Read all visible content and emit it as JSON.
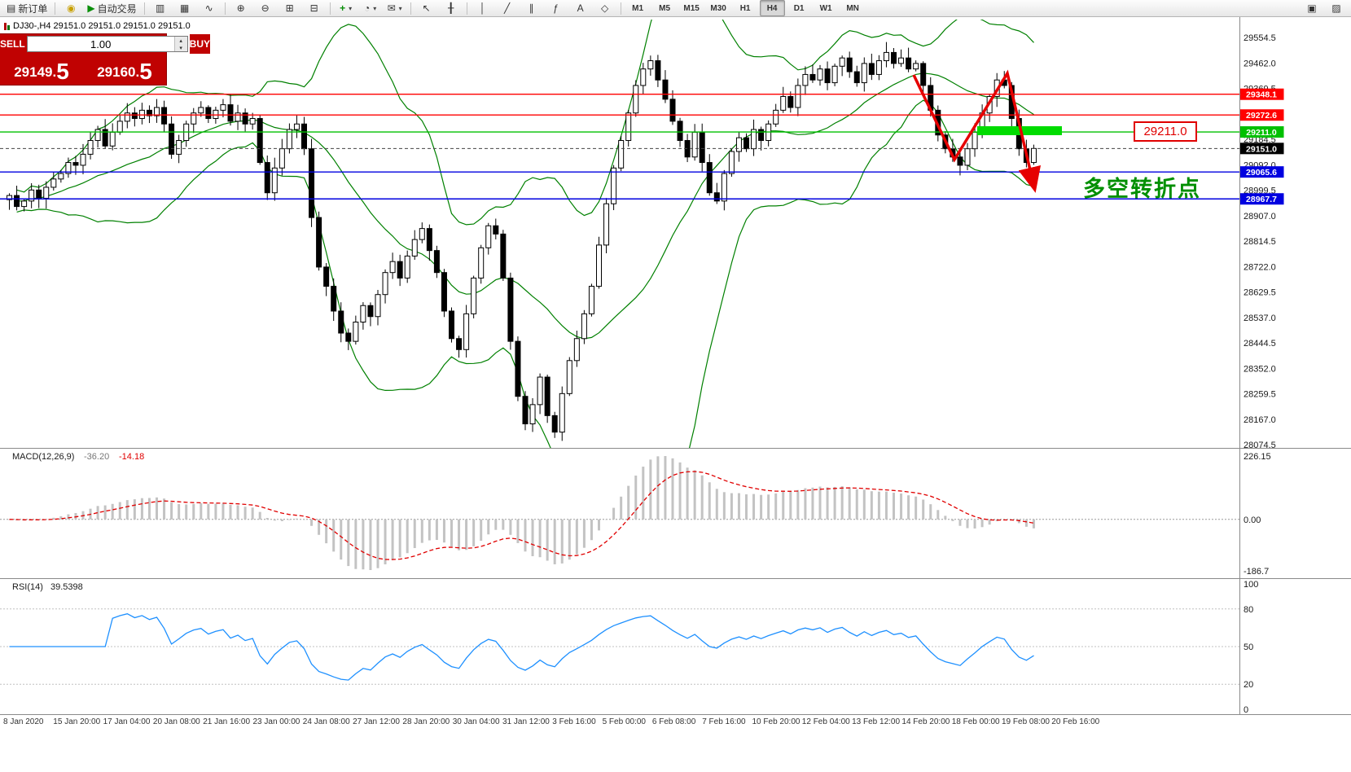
{
  "window": {
    "symbol_header": "DJ30-,H4   29151.0 29151.0 29151.0 29151.0"
  },
  "toolbar": {
    "new_order_label": "新订单",
    "autotrade_label": "自动交易",
    "timeframes": [
      "M1",
      "M5",
      "M15",
      "M30",
      "H1",
      "H4",
      "D1",
      "W1",
      "MN"
    ],
    "active_timeframe": "H4",
    "icons": [
      {
        "name": "new-order-icon",
        "glyph": "▤"
      },
      {
        "name": "megaphone-icon",
        "glyph": "◉"
      },
      {
        "name": "play-icon",
        "glyph": "▶"
      },
      {
        "name": "bar-chart-icon",
        "glyph": "▥"
      },
      {
        "name": "candlestick-chart-icon",
        "glyph": "▦"
      },
      {
        "name": "line-chart-icon",
        "glyph": "∿"
      },
      {
        "name": "zoom-in-icon",
        "glyph": "⊕"
      },
      {
        "name": "zoom-out-icon",
        "glyph": "⊖"
      },
      {
        "name": "tile-windows-icon",
        "glyph": "⊞"
      },
      {
        "name": "cascade-windows-icon",
        "glyph": "⊟"
      },
      {
        "name": "add-indicator-icon",
        "glyph": "+"
      },
      {
        "name": "clock-icon",
        "glyph": "◔"
      },
      {
        "name": "template-icon",
        "glyph": "✉"
      },
      {
        "name": "cursor-icon",
        "glyph": "↖"
      },
      {
        "name": "crosshair-icon",
        "glyph": "╂"
      },
      {
        "name": "vertical-line-icon",
        "glyph": "│"
      },
      {
        "name": "trendline-icon",
        "glyph": "╱"
      },
      {
        "name": "channel-icon",
        "glyph": "∥"
      },
      {
        "name": "fibonacci-icon",
        "glyph": "ƒ"
      },
      {
        "name": "text-icon",
        "glyph": "A"
      },
      {
        "name": "shapes-icon",
        "glyph": "◇"
      },
      {
        "name": "dropdown-caret-icon",
        "glyph": "▾"
      },
      {
        "name": "maximize-icon",
        "glyph": "▣"
      },
      {
        "name": "pattern-icon",
        "glyph": "▨"
      },
      {
        "name": "caret-up-icon",
        "glyph": "▴"
      }
    ]
  },
  "trade_panel": {
    "sell_label": "SELL",
    "buy_label": "BUY",
    "volume": "1.00",
    "sell_price_main": "29149.",
    "sell_price_big": "5",
    "buy_price_main": "29160.",
    "buy_price_big": "5"
  },
  "annotations": {
    "level_label": "29211.0",
    "turning_point_text": "多空转折点",
    "arrow_color": "#e60000",
    "highlight_color": "#00dc00"
  },
  "chart_data": {
    "type": "candlestick",
    "symbol": "DJ30-",
    "timeframe": "H4",
    "ohlc_readout": [
      "29151.0",
      "29151.0",
      "29151.0",
      "29151.0"
    ],
    "y_axis": {
      "min": 28074.5,
      "max": 29554.5,
      "tick_step": 92.5,
      "ticks": [
        "29554.5",
        "29462.0",
        "29369.5",
        "29277.0",
        "29184.5",
        "29092.0",
        "28999.5",
        "28907.0",
        "28814.5",
        "28722.0",
        "28629.5",
        "28537.0",
        "28444.5",
        "28352.0",
        "28259.5",
        "28167.0",
        "28074.5"
      ]
    },
    "closes": [
      28980,
      28940,
      28960,
      29000,
      28970,
      29010,
      29040,
      29060,
      29100,
      29090,
      29130,
      29180,
      29220,
      29160,
      29210,
      29250,
      29280,
      29260,
      29290,
      29270,
      29300,
      29240,
      29130,
      29180,
      29240,
      29280,
      29300,
      29260,
      29290,
      29310,
      29250,
      29280,
      29240,
      29260,
      29100,
      28990,
      29080,
      29150,
      29220,
      29240,
      29150,
      28900,
      28720,
      28650,
      28560,
      28480,
      28450,
      28520,
      28580,
      28540,
      28620,
      28700,
      28740,
      28680,
      28760,
      28820,
      28860,
      28780,
      28700,
      28560,
      28460,
      28420,
      28550,
      28680,
      28790,
      28870,
      28840,
      28680,
      28450,
      28250,
      28150,
      28220,
      28320,
      28180,
      28120,
      28260,
      28380,
      28460,
      28550,
      28650,
      28800,
      28950,
      29080,
      29180,
      29280,
      29380,
      29440,
      29470,
      29400,
      29330,
      29250,
      29180,
      29120,
      29210,
      29100,
      28990,
      28960,
      29060,
      29140,
      29190,
      29150,
      29220,
      29180,
      29240,
      29290,
      29340,
      29300,
      29380,
      29420,
      29400,
      29440,
      29390,
      29450,
      29480,
      29430,
      29390,
      29460,
      29420,
      29470,
      29500,
      29460,
      29480,
      29440,
      29460,
      29380,
      29290,
      29200,
      29150,
      29120,
      29090,
      29150,
      29210,
      29280,
      29340,
      29400,
      29380,
      29260,
      29150,
      29100,
      29151
    ],
    "levels": [
      {
        "price": 29348.1,
        "color": "#ff0000"
      },
      {
        "price": 29272.6,
        "color": "#ff0000"
      },
      {
        "price": 29211.0,
        "color": "#00c000"
      },
      {
        "price": 29065.6,
        "color": "#0000e0"
      },
      {
        "price": 28967.7,
        "color": "#0000e0"
      }
    ],
    "current_price": 29151.0,
    "bollinger": {
      "period": 20,
      "deviation": 2,
      "color": "#008000"
    },
    "macd": {
      "name": "MACD(12,26,9)",
      "macd_value": "-36.20",
      "signal_value": "-14.18",
      "scale_labels": [
        "226.15",
        "0.00",
        "-186.7"
      ],
      "histogram_color": "#c3c3c3",
      "signal_color": "#e00000"
    },
    "rsi": {
      "name": "RSI(14)",
      "value": "39.5398",
      "scale_labels": [
        "100",
        "80",
        "50",
        "20",
        "0"
      ],
      "line_color": "#1e90ff"
    },
    "time_labels": [
      "8 Jan 2020",
      "15 Jan 20:00",
      "17 Jan 04:00",
      "20 Jan 08:00",
      "21 Jan 16:00",
      "23 Jan 00:00",
      "24 Jan 08:00",
      "27 Jan 12:00",
      "28 Jan 20:00",
      "30 Jan 04:00",
      "31 Jan 12:00",
      "3 Feb 16:00",
      "5 Feb 00:00",
      "6 Feb 08:00",
      "7 Feb 16:00",
      "10 Feb 20:00",
      "12 Feb 04:00",
      "13 Feb 12:00",
      "14 Feb 20:00",
      "18 Feb 00:00",
      "19 Feb 08:00",
      "20 Feb 16:00"
    ]
  }
}
